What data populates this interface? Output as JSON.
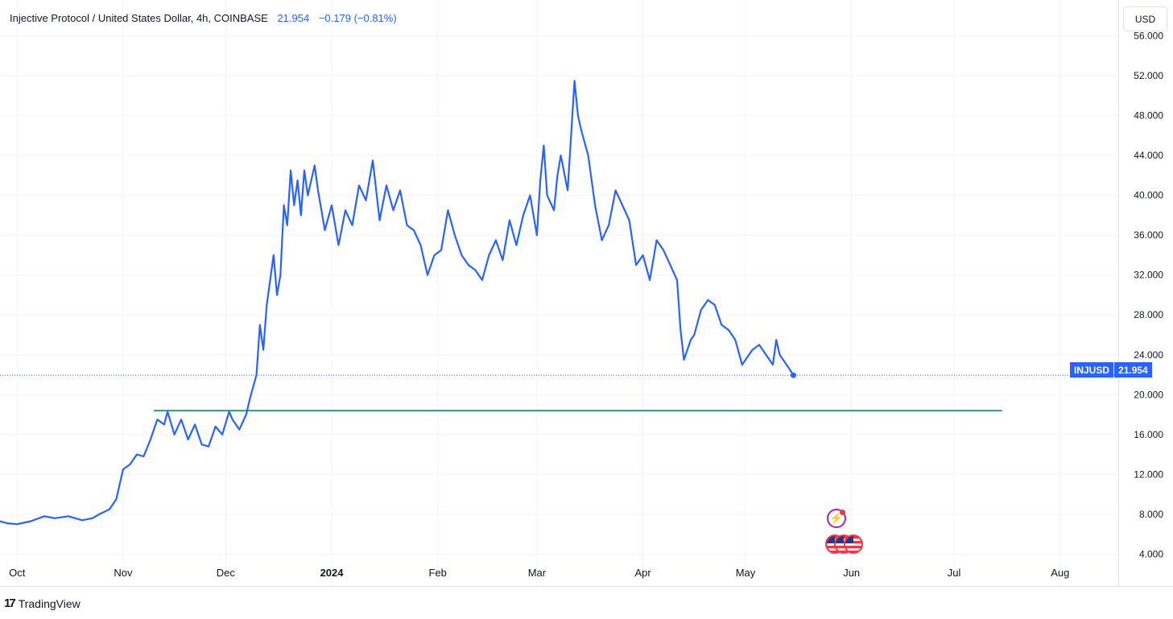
{
  "legend": {
    "symbol": "Injective Protocol / United States Dollar, 4h, COINBASE",
    "close": "21.954",
    "change": "−0.179 (−0.81%)"
  },
  "currency": "USD",
  "price_tag": {
    "ticker": "INJUSD",
    "value": "21.954"
  },
  "brand": "TradingView",
  "colors": {
    "line": "#2962ff",
    "support": "#26a17b",
    "grid": "#f0f3fa",
    "axis_text": "#131722"
  },
  "icons": [
    "tradingview-logo-icon",
    "flash-event-icon",
    "us-flag-event-icon"
  ],
  "chart_data": {
    "type": "line",
    "title": "",
    "xlabel": "",
    "ylabel": "",
    "series": [
      {
        "name": "INJUSD",
        "points": [
          [
            "2023-09-25",
            7.4
          ],
          [
            "2023-09-28",
            7.1
          ],
          [
            "2023-10-01",
            7.0
          ],
          [
            "2023-10-05",
            7.3
          ],
          [
            "2023-10-09",
            7.8
          ],
          [
            "2023-10-12",
            7.6
          ],
          [
            "2023-10-16",
            7.8
          ],
          [
            "2023-10-20",
            7.4
          ],
          [
            "2023-10-23",
            7.6
          ],
          [
            "2023-10-25",
            8.0
          ],
          [
            "2023-10-28",
            8.5
          ],
          [
            "2023-10-30",
            9.5
          ],
          [
            "2023-11-01",
            12.5
          ],
          [
            "2023-11-03",
            13.0
          ],
          [
            "2023-11-05",
            14.0
          ],
          [
            "2023-11-07",
            13.8
          ],
          [
            "2023-11-09",
            15.5
          ],
          [
            "2023-11-11",
            17.5
          ],
          [
            "2023-11-13",
            17.0
          ],
          [
            "2023-11-14",
            18.3
          ],
          [
            "2023-11-16",
            16.0
          ],
          [
            "2023-11-18",
            17.5
          ],
          [
            "2023-11-20",
            15.5
          ],
          [
            "2023-11-22",
            17.0
          ],
          [
            "2023-11-24",
            15.0
          ],
          [
            "2023-11-26",
            14.8
          ],
          [
            "2023-11-28",
            16.8
          ],
          [
            "2023-11-30",
            16.0
          ],
          [
            "2023-12-02",
            18.3
          ],
          [
            "2023-12-03",
            17.5
          ],
          [
            "2023-12-05",
            16.5
          ],
          [
            "2023-12-07",
            18.0
          ],
          [
            "2023-12-08",
            19.5
          ],
          [
            "2023-12-10",
            22.0
          ],
          [
            "2023-12-11",
            27.0
          ],
          [
            "2023-12-12",
            24.5
          ],
          [
            "2023-12-13",
            29.0
          ],
          [
            "2023-12-14",
            31.5
          ],
          [
            "2023-12-15",
            34.0
          ],
          [
            "2023-12-16",
            30.0
          ],
          [
            "2023-12-17",
            32.0
          ],
          [
            "2023-12-18",
            39.0
          ],
          [
            "2023-12-19",
            37.0
          ],
          [
            "2023-12-20",
            42.5
          ],
          [
            "2023-12-21",
            39.0
          ],
          [
            "2023-12-22",
            41.5
          ],
          [
            "2023-12-23",
            38.0
          ],
          [
            "2023-12-24",
            42.5
          ],
          [
            "2023-12-25",
            40.0
          ],
          [
            "2023-12-27",
            43.0
          ],
          [
            "2023-12-28",
            40.5
          ],
          [
            "2023-12-30",
            36.5
          ],
          [
            "2024-01-01",
            39.0
          ],
          [
            "2024-01-03",
            35.0
          ],
          [
            "2024-01-05",
            38.5
          ],
          [
            "2024-01-07",
            37.0
          ],
          [
            "2024-01-09",
            41.0
          ],
          [
            "2024-01-11",
            39.5
          ],
          [
            "2024-01-13",
            43.5
          ],
          [
            "2024-01-15",
            37.5
          ],
          [
            "2024-01-17",
            41.0
          ],
          [
            "2024-01-19",
            38.5
          ],
          [
            "2024-01-21",
            40.5
          ],
          [
            "2024-01-23",
            37.0
          ],
          [
            "2024-01-25",
            36.5
          ],
          [
            "2024-01-27",
            35.0
          ],
          [
            "2024-01-29",
            32.0
          ],
          [
            "2024-01-31",
            34.0
          ],
          [
            "2024-02-02",
            34.5
          ],
          [
            "2024-02-04",
            38.5
          ],
          [
            "2024-02-06",
            36.0
          ],
          [
            "2024-02-08",
            34.0
          ],
          [
            "2024-02-10",
            33.0
          ],
          [
            "2024-02-12",
            32.5
          ],
          [
            "2024-02-14",
            31.5
          ],
          [
            "2024-02-16",
            34.0
          ],
          [
            "2024-02-18",
            35.5
          ],
          [
            "2024-02-20",
            33.5
          ],
          [
            "2024-02-22",
            37.5
          ],
          [
            "2024-02-24",
            35.0
          ],
          [
            "2024-02-26",
            38.0
          ],
          [
            "2024-02-28",
            40.0
          ],
          [
            "2024-03-01",
            36.0
          ],
          [
            "2024-03-02",
            41.5
          ],
          [
            "2024-03-03",
            45.0
          ],
          [
            "2024-03-04",
            40.0
          ],
          [
            "2024-03-06",
            38.5
          ],
          [
            "2024-03-07",
            42.0
          ],
          [
            "2024-03-08",
            44.0
          ],
          [
            "2024-03-10",
            40.5
          ],
          [
            "2024-03-12",
            51.5
          ],
          [
            "2024-03-13",
            48.0
          ],
          [
            "2024-03-14",
            46.5
          ],
          [
            "2024-03-16",
            44.0
          ],
          [
            "2024-03-17",
            41.5
          ],
          [
            "2024-03-18",
            39.0
          ],
          [
            "2024-03-20",
            35.5
          ],
          [
            "2024-03-22",
            37.0
          ],
          [
            "2024-03-24",
            40.5
          ],
          [
            "2024-03-26",
            39.0
          ],
          [
            "2024-03-28",
            37.5
          ],
          [
            "2024-03-30",
            33.0
          ],
          [
            "2024-04-01",
            34.0
          ],
          [
            "2024-04-03",
            31.5
          ],
          [
            "2024-04-05",
            35.5
          ],
          [
            "2024-04-07",
            34.5
          ],
          [
            "2024-04-09",
            33.0
          ],
          [
            "2024-04-11",
            31.5
          ],
          [
            "2024-04-12",
            26.5
          ],
          [
            "2024-04-13",
            23.5
          ],
          [
            "2024-04-15",
            25.5
          ],
          [
            "2024-04-16",
            26.0
          ],
          [
            "2024-04-18",
            28.5
          ],
          [
            "2024-04-20",
            29.5
          ],
          [
            "2024-04-22",
            29.0
          ],
          [
            "2024-04-24",
            27.0
          ],
          [
            "2024-04-26",
            26.5
          ],
          [
            "2024-04-28",
            25.5
          ],
          [
            "2024-04-30",
            23.0
          ],
          [
            "2024-05-01",
            23.5
          ],
          [
            "2024-05-03",
            24.5
          ],
          [
            "2024-05-05",
            25.0
          ],
          [
            "2024-05-07",
            24.0
          ],
          [
            "2024-05-09",
            23.0
          ],
          [
            "2024-05-10",
            25.5
          ],
          [
            "2024-05-11",
            24.0
          ],
          [
            "2024-05-13",
            23.0
          ],
          [
            "2024-05-14",
            22.5
          ],
          [
            "2024-05-15",
            21.954
          ]
        ]
      }
    ],
    "support_line": {
      "value": 18.4,
      "x_start": "2023-11-10",
      "x_end": "2024-07-15"
    },
    "xlim": [
      "2023-09-26",
      "2024-08-18"
    ],
    "ylim": [
      0.8,
      59.6
    ],
    "y_ticks": [
      "4.000",
      "8.000",
      "12.000",
      "16.000",
      "20.000",
      "24.000",
      "28.000",
      "32.000",
      "36.000",
      "40.000",
      "44.000",
      "48.000",
      "52.000",
      "56.000"
    ],
    "x_ticks": [
      {
        "label": "Oct",
        "date": "2023-10-01",
        "bold": false
      },
      {
        "label": "Nov",
        "date": "2023-11-01",
        "bold": false
      },
      {
        "label": "Dec",
        "date": "2023-12-01",
        "bold": false
      },
      {
        "label": "2024",
        "date": "2024-01-01",
        "bold": true
      },
      {
        "label": "Feb",
        "date": "2024-02-01",
        "bold": false
      },
      {
        "label": "Mar",
        "date": "2024-03-01",
        "bold": false
      },
      {
        "label": "Apr",
        "date": "2024-04-01",
        "bold": false
      },
      {
        "label": "May",
        "date": "2024-05-01",
        "bold": false
      },
      {
        "label": "Jun",
        "date": "2024-06-01",
        "bold": false
      },
      {
        "label": "Jul",
        "date": "2024-07-01",
        "bold": false
      },
      {
        "label": "Aug",
        "date": "2024-08-01",
        "bold": false
      }
    ],
    "grid": true,
    "last_price_line": true
  }
}
